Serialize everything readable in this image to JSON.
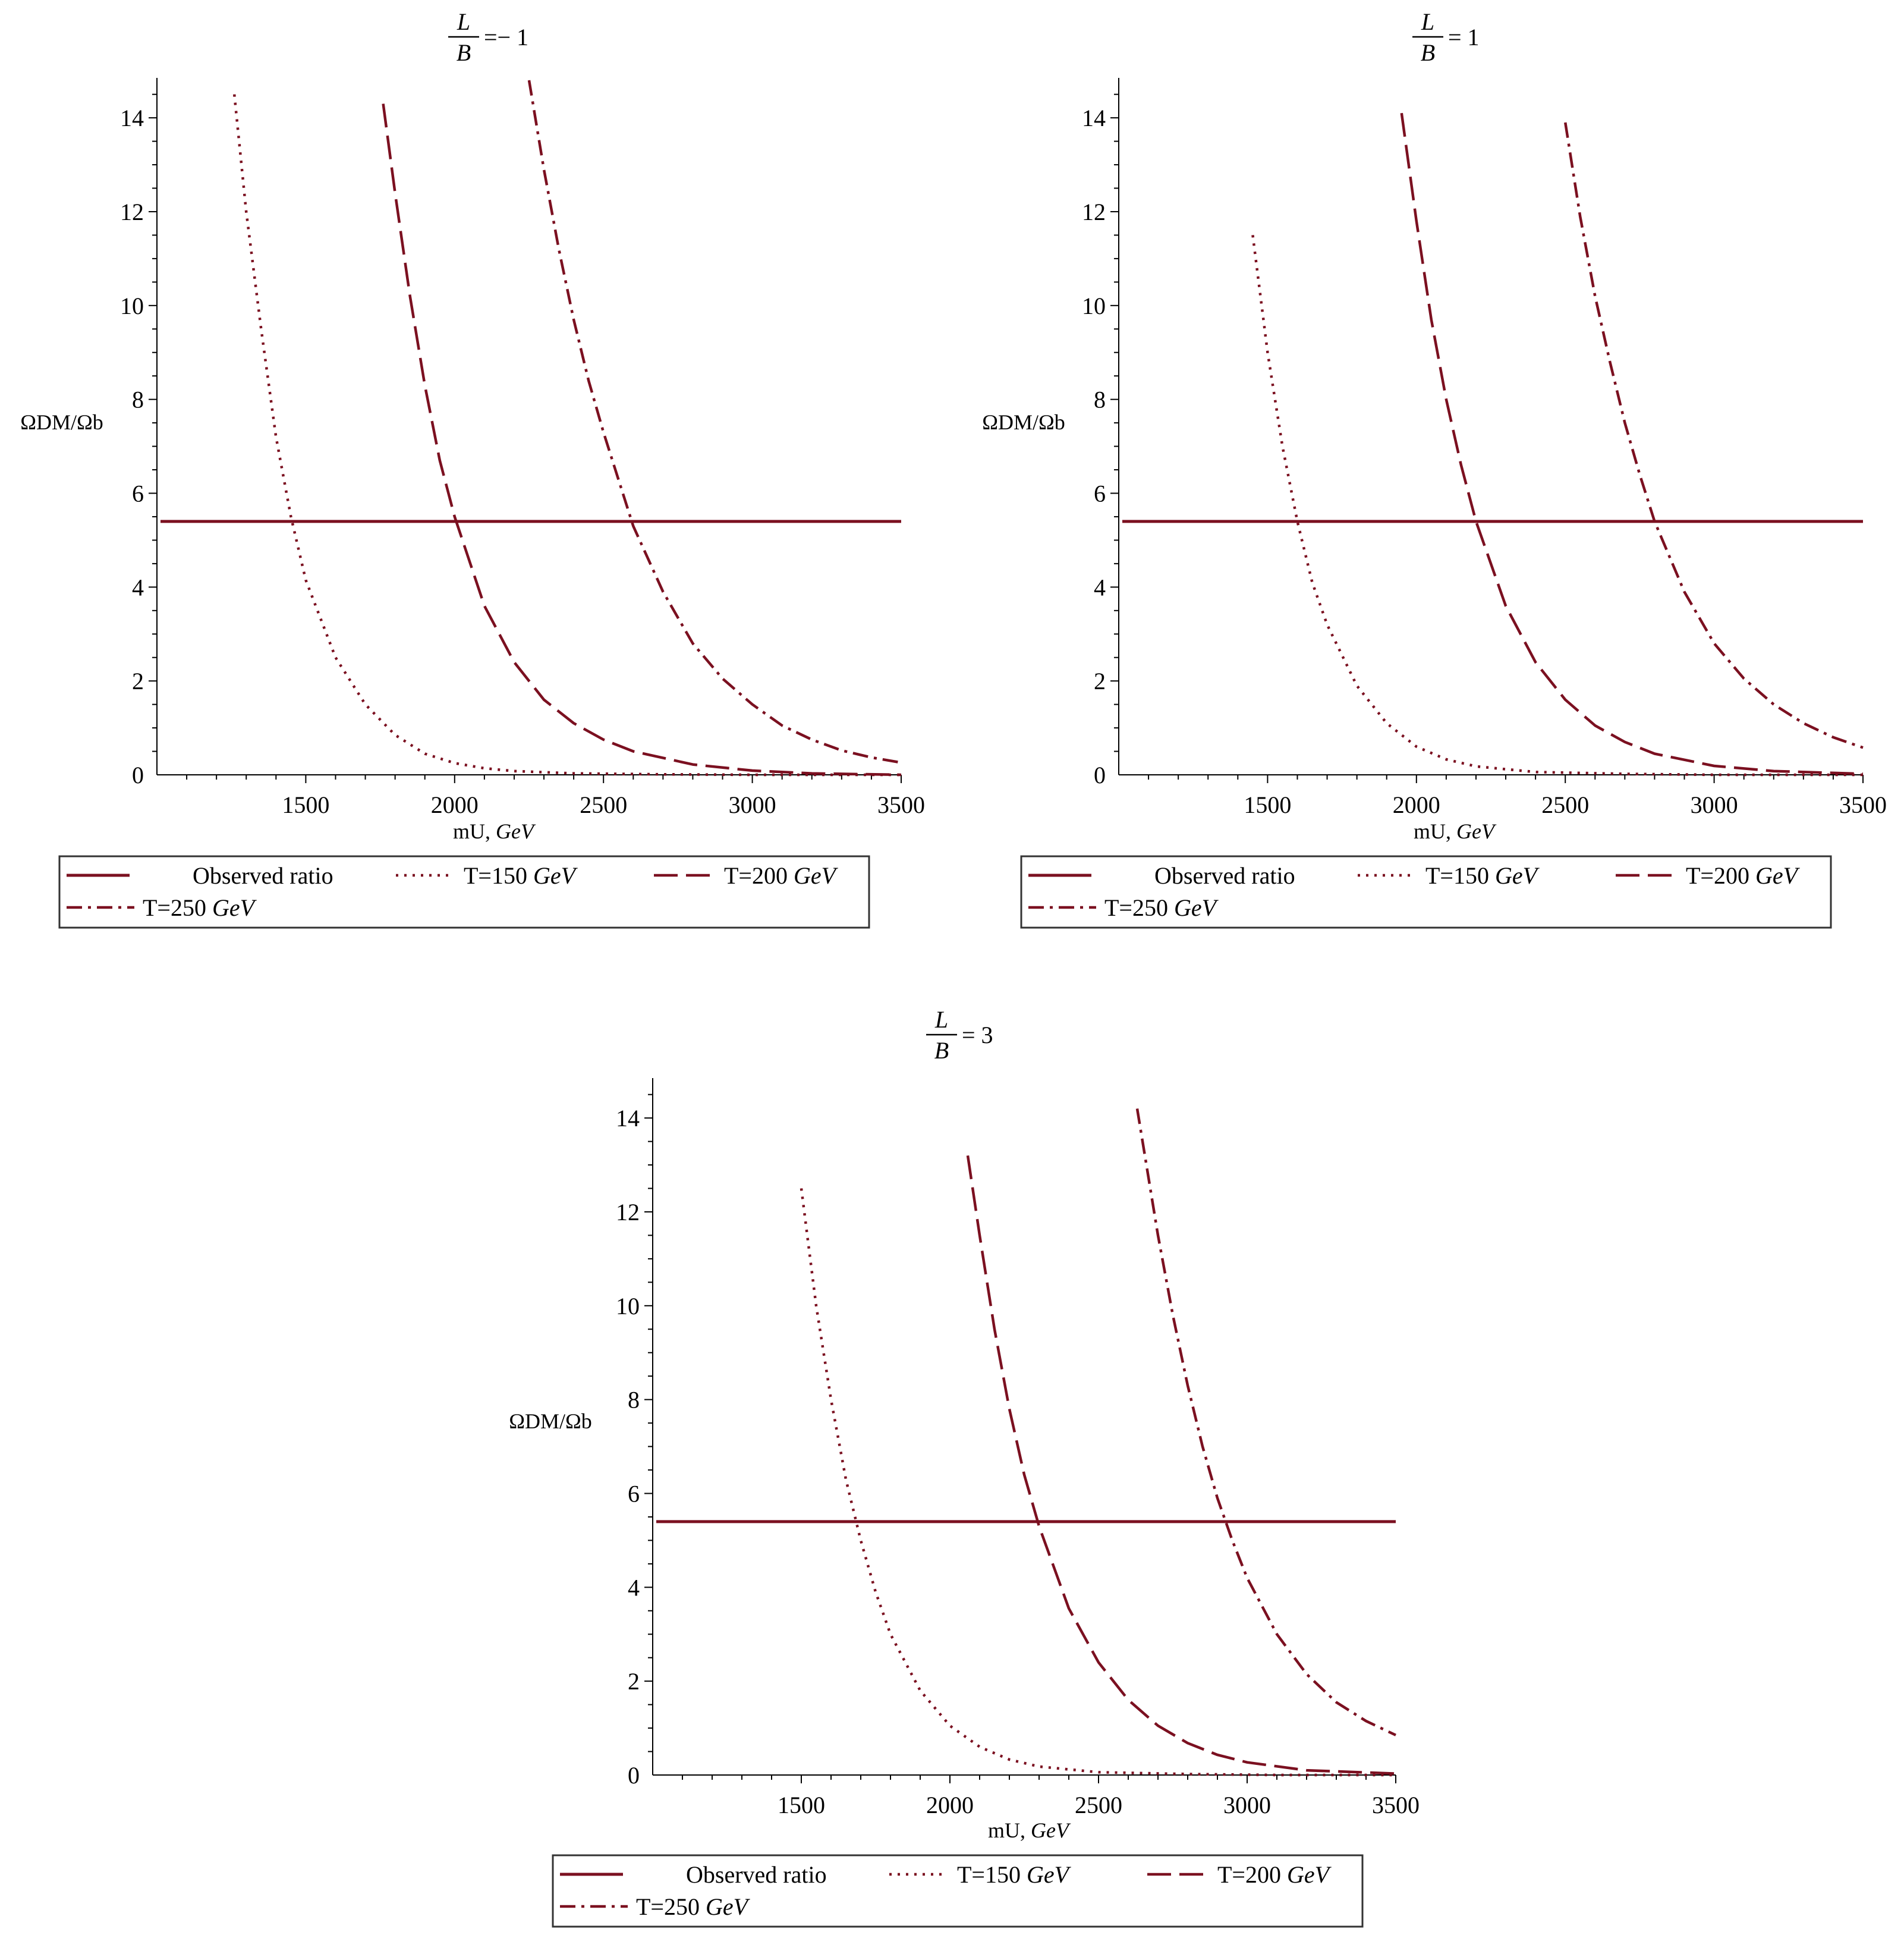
{
  "colors": {
    "curve": "#7b1020",
    "axis": "#000000",
    "legend_border": "#333333",
    "background": "#ffffff"
  },
  "chart_data": [
    {
      "type": "line",
      "title": {
        "numerator": "L",
        "denominator": "B",
        "rhs": "=− 1"
      },
      "xlabel": {
        "text": "mU, ",
        "unit": "GeV"
      },
      "ylabel": "ΩDM/Ωb",
      "xlim": [
        1000,
        3500
      ],
      "ylim": [
        0,
        14.8
      ],
      "xticks": [
        1500,
        2000,
        2500,
        3000,
        3500
      ],
      "yticks": [
        0,
        2,
        4,
        6,
        8,
        10,
        12,
        14
      ],
      "xtick_labels": [
        "1500",
        "2000",
        "2500",
        "3000",
        "3500"
      ],
      "ytick_labels": [
        "0",
        "2",
        "4",
        "6",
        "8",
        "10",
        "12",
        "14"
      ],
      "observed_ratio": 5.4,
      "series": [
        {
          "name": "T=150",
          "style": "dotted",
          "x": [
            1260,
            1300,
            1350,
            1400,
            1450,
            1500,
            1600,
            1700,
            1800,
            1900,
            2000,
            2100,
            2200,
            2400,
            2700,
            3000,
            3500
          ],
          "y": [
            14.5,
            12.0,
            9.5,
            7.2,
            5.5,
            4.15,
            2.5,
            1.5,
            0.85,
            0.45,
            0.25,
            0.14,
            0.08,
            0.03,
            0.01,
            0.0,
            0.0
          ]
        },
        {
          "name": "T=200",
          "style": "dashed",
          "x": [
            1760,
            1800,
            1850,
            1900,
            1950,
            2000,
            2100,
            2200,
            2300,
            2400,
            2500,
            2600,
            2800,
            3000,
            3200,
            3500
          ],
          "y": [
            14.3,
            12.4,
            10.2,
            8.3,
            6.7,
            5.5,
            3.6,
            2.4,
            1.6,
            1.1,
            0.75,
            0.5,
            0.22,
            0.09,
            0.03,
            0.0
          ]
        },
        {
          "name": "T=250",
          "style": "dashdot",
          "x": [
            2250,
            2300,
            2350,
            2400,
            2450,
            2500,
            2550,
            2600,
            2700,
            2800,
            2900,
            3000,
            3100,
            3200,
            3300,
            3400,
            3500
          ],
          "y": [
            14.8,
            12.9,
            11.2,
            9.7,
            8.4,
            7.3,
            6.3,
            5.3,
            3.9,
            2.8,
            2.05,
            1.5,
            1.05,
            0.75,
            0.52,
            0.37,
            0.26
          ]
        }
      ]
    },
    {
      "type": "line",
      "title": {
        "numerator": "L",
        "denominator": "B",
        "rhs": "= 1"
      },
      "xlabel": {
        "text": "mU, ",
        "unit": "GeV"
      },
      "ylabel": "ΩDM/Ωb",
      "xlim": [
        1000,
        3500
      ],
      "ylim": [
        0,
        14.8
      ],
      "xticks": [
        1500,
        2000,
        2500,
        3000,
        3500
      ],
      "yticks": [
        0,
        2,
        4,
        6,
        8,
        10,
        12,
        14
      ],
      "xtick_labels": [
        "1500",
        "2000",
        "2500",
        "3000",
        "3500"
      ],
      "ytick_labels": [
        "0",
        "2",
        "4",
        "6",
        "8",
        "10",
        "12",
        "14"
      ],
      "observed_ratio": 5.4,
      "series": [
        {
          "name": "T=150",
          "style": "dotted",
          "x": [
            1450,
            1500,
            1550,
            1600,
            1650,
            1700,
            1800,
            1900,
            2000,
            2100,
            2200,
            2400,
            2700,
            3000,
            3500
          ],
          "y": [
            11.5,
            9.0,
            7.0,
            5.4,
            4.1,
            3.2,
            1.9,
            1.1,
            0.6,
            0.33,
            0.18,
            0.06,
            0.02,
            0.0,
            0.0
          ]
        },
        {
          "name": "T=200",
          "style": "dashed",
          "x": [
            1950,
            2000,
            2050,
            2100,
            2150,
            2200,
            2300,
            2400,
            2500,
            2600,
            2700,
            2800,
            3000,
            3200,
            3500
          ],
          "y": [
            14.1,
            11.8,
            9.7,
            8.0,
            6.6,
            5.4,
            3.6,
            2.4,
            1.6,
            1.05,
            0.7,
            0.45,
            0.19,
            0.08,
            0.02
          ]
        },
        {
          "name": "T=250",
          "style": "dashdot",
          "x": [
            2500,
            2550,
            2600,
            2650,
            2700,
            2750,
            2800,
            2900,
            3000,
            3100,
            3200,
            3300,
            3400,
            3500
          ],
          "y": [
            13.9,
            11.9,
            10.2,
            8.8,
            7.5,
            6.4,
            5.4,
            3.9,
            2.8,
            2.05,
            1.5,
            1.1,
            0.8,
            0.58
          ]
        }
      ]
    },
    {
      "type": "line",
      "title": {
        "numerator": "L",
        "denominator": "B",
        "rhs": "= 3"
      },
      "xlabel": {
        "text": "mU, ",
        "unit": "GeV"
      },
      "ylabel": "ΩDM/Ωb",
      "xlim": [
        1000,
        3500
      ],
      "ylim": [
        0,
        14.8
      ],
      "xticks": [
        1500,
        2000,
        2500,
        3000,
        3500
      ],
      "yticks": [
        0,
        2,
        4,
        6,
        8,
        10,
        12,
        14
      ],
      "xtick_labels": [
        "1500",
        "2000",
        "2500",
        "3000",
        "3500"
      ],
      "ytick_labels": [
        "0",
        "2",
        "4",
        "6",
        "8",
        "10",
        "12",
        "14"
      ],
      "observed_ratio": 5.4,
      "series": [
        {
          "name": "T=150",
          "style": "dotted",
          "x": [
            1500,
            1550,
            1600,
            1650,
            1700,
            1750,
            1800,
            1900,
            2000,
            2100,
            2200,
            2300,
            2500,
            2800,
            3100,
            3500
          ],
          "y": [
            12.5,
            10.0,
            8.0,
            6.3,
            5.0,
            3.9,
            3.0,
            1.8,
            1.05,
            0.6,
            0.33,
            0.18,
            0.06,
            0.02,
            0.0,
            0.0
          ]
        },
        {
          "name": "T=200",
          "style": "dashed",
          "x": [
            2060,
            2100,
            2150,
            2200,
            2250,
            2300,
            2400,
            2500,
            2600,
            2700,
            2800,
            2900,
            3000,
            3200,
            3500
          ],
          "y": [
            13.2,
            11.5,
            9.5,
            7.8,
            6.4,
            5.3,
            3.55,
            2.4,
            1.6,
            1.05,
            0.68,
            0.43,
            0.27,
            0.1,
            0.03
          ]
        },
        {
          "name": "T=250",
          "style": "dashdot",
          "x": [
            2630,
            2700,
            2750,
            2800,
            2850,
            2900,
            2950,
            3000,
            3100,
            3200,
            3300,
            3400,
            3500
          ],
          "y": [
            14.2,
            11.5,
            9.8,
            8.3,
            7.0,
            5.9,
            5.0,
            4.2,
            3.0,
            2.15,
            1.55,
            1.15,
            0.85
          ]
        }
      ]
    }
  ],
  "legend": {
    "observed": "Observed ratio",
    "t150": {
      "label": "T=150 ",
      "unit": "GeV"
    },
    "t200": {
      "label": "T=200 ",
      "unit": "GeV"
    },
    "t250": {
      "label": "T=250 ",
      "unit": "GeV"
    }
  }
}
